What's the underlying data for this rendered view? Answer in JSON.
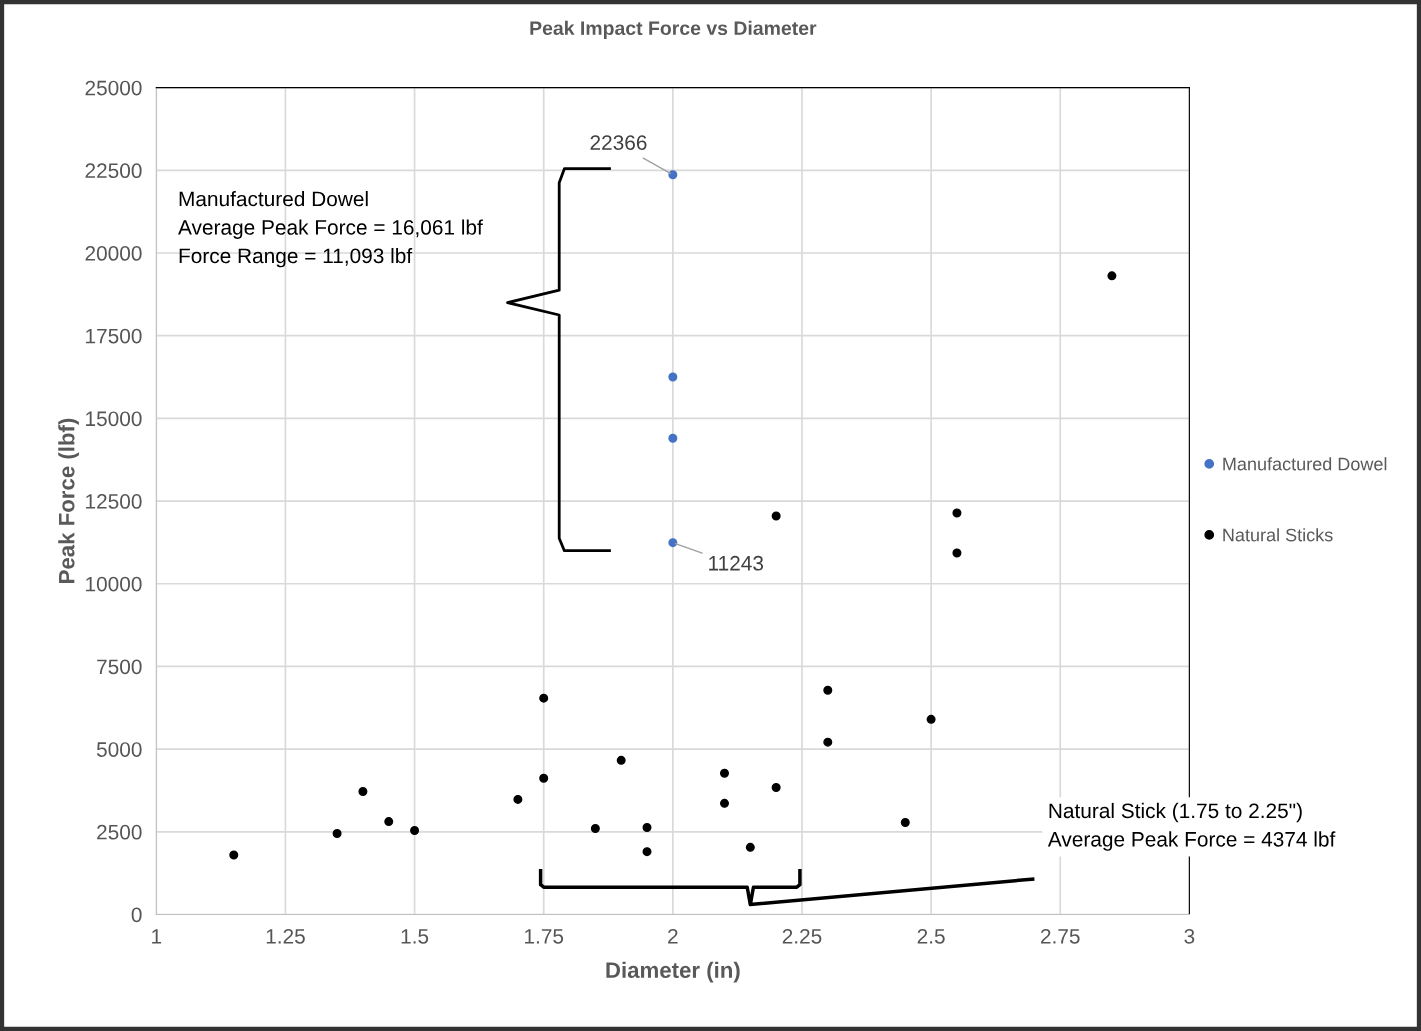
{
  "chart_data": {
    "type": "scatter",
    "title": "Peak Impact Force vs Diameter",
    "xlabel": "Diameter (in)",
    "ylabel": "Peak Force (lbf)",
    "series": [
      {
        "name": "Manufactured Dowel",
        "color": "#4472c4",
        "x": [
          2.0,
          2.0,
          2.0,
          2.0
        ],
        "values": [
          22366,
          16250,
          14400,
          11243
        ]
      },
      {
        "name": "Natural Sticks",
        "color": "#000000",
        "x": [
          1.15,
          1.35,
          1.4,
          1.45,
          1.5,
          1.7,
          1.75,
          1.75,
          1.85,
          1.9,
          1.95,
          1.95,
          2.1,
          2.1,
          2.15,
          2.2,
          2.2,
          2.3,
          2.3,
          2.45,
          2.5,
          2.55,
          2.55,
          2.85
        ],
        "values": [
          1800,
          2450,
          3720,
          2810,
          2540,
          3480,
          6540,
          4120,
          2600,
          4660,
          2630,
          1900,
          4270,
          3360,
          2030,
          3840,
          12050,
          6780,
          5210,
          2780,
          5900,
          12140,
          10930,
          19310
        ]
      }
    ],
    "xlim": [
      1,
      3
    ],
    "xticks": [
      1,
      1.25,
      1.5,
      1.75,
      2,
      2.25,
      2.5,
      2.75,
      3
    ],
    "ylim": [
      0,
      25000
    ],
    "yticks": [
      0,
      2500,
      5000,
      7500,
      10000,
      12500,
      15000,
      17500,
      20000,
      22500,
      25000
    ],
    "grid": true,
    "legend": "right",
    "marker": "circle",
    "annotations": [
      {
        "text": "22366",
        "x": 2,
        "y": 22366
      },
      {
        "text": "11243",
        "x": 2,
        "y": 11243
      },
      "Manufactured Dowel\nAverage Peak Force = 16,061 lbf\nForce Range = 11,093 lbf",
      "Natural Stick (1.75 to 2.25\")\nAverage Peak Force = 4374 lbf"
    ]
  }
}
